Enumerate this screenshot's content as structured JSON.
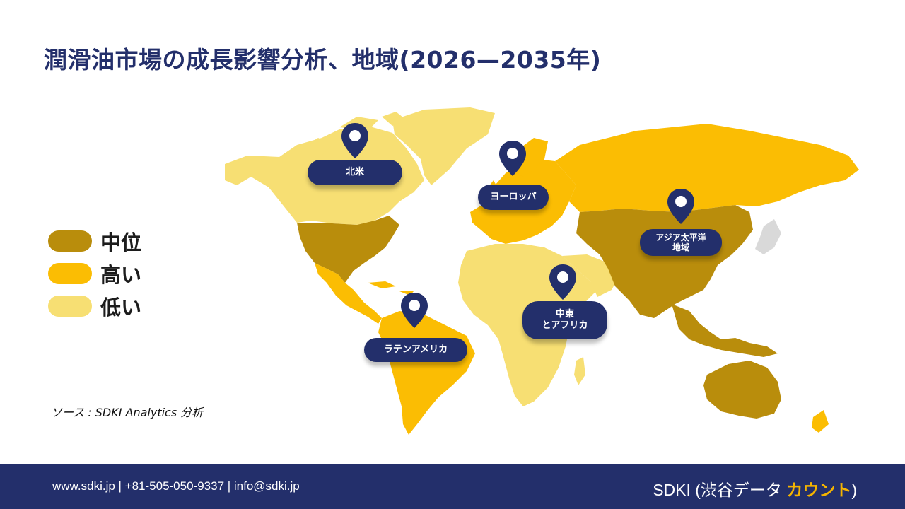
{
  "title": "潤滑油市場の成長影響分析、地域(2026—2035年)",
  "legend": {
    "items": [
      {
        "label": "中位",
        "color": "#b98d0c"
      },
      {
        "label": "高い",
        "color": "#fbbd03"
      },
      {
        "label": "低い",
        "color": "#f7df73"
      }
    ]
  },
  "map_colors": {
    "medium": "#b98d0c",
    "high": "#fbbd03",
    "low": "#f7df73",
    "none": "#d9d9d9",
    "marker": "#232f6b"
  },
  "regions": [
    {
      "id": "north-america",
      "line1": "北米",
      "line2": ""
    },
    {
      "id": "europe",
      "line1": "ヨーロッパ",
      "line2": ""
    },
    {
      "id": "asia-pacific",
      "line1": "アジア太平洋",
      "line2": "地域"
    },
    {
      "id": "middle-east-africa",
      "line1": "中東",
      "line2": "とアフリカ"
    },
    {
      "id": "latin-america",
      "line1": "ラテンアメリカ",
      "line2": ""
    }
  ],
  "source": "ソース  : SDKI Analytics 分析",
  "footer": {
    "contact": "www.sdki.jp | +81-505-050-9337 | info@sdki.jp",
    "brand_prefix": "SDKI (渋谷データ ",
    "brand_accent": "カウント",
    "brand_suffix": ")"
  }
}
